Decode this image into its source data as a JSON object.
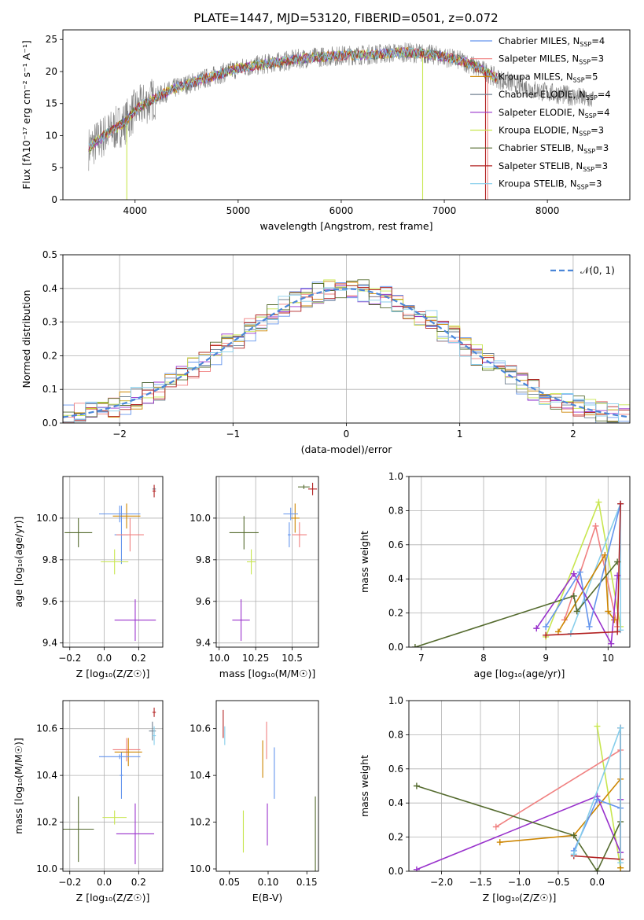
{
  "title": "PLATE=1447, MJD=53120, FIBERID=0501, z=0.072",
  "series_colors": [
    "#6495ed",
    "#f08080",
    "#cd8500",
    "#708090",
    "#9932cc",
    "#c8e650",
    "#556b2f",
    "#b22222",
    "#87ceeb"
  ],
  "chart_data": [
    {
      "type": "line",
      "id": "spectrum",
      "xlabel": "wavelength [Angstrom, rest frame]",
      "ylabel": "Flux [fλ10⁻¹⁷ erg cm⁻² s⁻¹ A⁻¹]",
      "xlim": [
        3300,
        8800
      ],
      "ylim": [
        0,
        26.5
      ],
      "xticks": [
        4000,
        5000,
        6000,
        7000,
        8000
      ],
      "yticks": [
        0,
        5,
        10,
        15,
        20,
        25
      ],
      "legend_position": "upper-right",
      "grid": false,
      "continuum_x": [
        3550,
        3700,
        3900,
        4000,
        4200,
        4400,
        4600,
        4800,
        5000,
        5200,
        5400,
        5600,
        5800,
        6000,
        6200,
        6400,
        6600,
        6800,
        7000,
        7200,
        7400,
        7500,
        7700,
        7900,
        8100,
        8300,
        8450
      ],
      "continuum_y": [
        8,
        10,
        12,
        14,
        16,
        17.5,
        18.5,
        19.5,
        20.5,
        21,
        21.5,
        22,
        22.3,
        22.5,
        22.6,
        22.8,
        23,
        22.8,
        22.3,
        21.5,
        20,
        19,
        18,
        17,
        16.5,
        16,
        15.5
      ],
      "series": [
        {
          "name": "Chabrier MILES, N",
          "sub": "SSP",
          "suffix": "=4"
        },
        {
          "name": "Salpeter MILES, N",
          "sub": "SSP",
          "suffix": "=3"
        },
        {
          "name": "Kroupa MILES, N",
          "sub": "SSP",
          "suffix": "=5"
        },
        {
          "name": "Chabrier ELODIE, N",
          "sub": "SSP",
          "suffix": "=4"
        },
        {
          "name": "Salpeter ELODIE, N",
          "sub": "SSP",
          "suffix": "=4"
        },
        {
          "name": "Kroupa ELODIE, N",
          "sub": "SSP",
          "suffix": "=3"
        },
        {
          "name": "Chabrier STELIB, N",
          "sub": "SSP",
          "suffix": "=3"
        },
        {
          "name": "Salpeter STELIB, N",
          "sub": "SSP",
          "suffix": "=3"
        },
        {
          "name": "Kroupa STELIB, N",
          "sub": "SSP",
          "suffix": "=3"
        }
      ]
    },
    {
      "type": "histogram",
      "id": "residuals",
      "xlabel": "(data-model)/error",
      "ylabel": "Normed distribution",
      "xlim": [
        -2.5,
        2.5
      ],
      "ylim": [
        0,
        0.5
      ],
      "xticks": [
        -2,
        -1,
        0,
        1,
        2
      ],
      "yticks": [
        0.0,
        0.1,
        0.2,
        0.3,
        0.4,
        0.5
      ],
      "grid": true,
      "legend_position": "upper-right",
      "reference_curve": "𝒩(0, 1)"
    },
    {
      "type": "scatter",
      "id": "age-vs-Z",
      "xlabel": "Z [log₁₀(Z/Z☉)]",
      "ylabel": "age  [log₁₀(age/yr)]",
      "xlim": [
        -0.24,
        0.34
      ],
      "ylim": [
        9.38,
        10.2
      ],
      "xticks": [
        -0.2,
        0.0,
        0.2
      ],
      "yticks": [
        9.4,
        9.6,
        9.8,
        10.0
      ],
      "grid": true,
      "points": [
        {
          "x": 0.1,
          "y": 9.92,
          "xerr": 0.04,
          "yerr": 0.14,
          "c": 0
        },
        {
          "x": 0.15,
          "y": 9.92,
          "xerr": 0.08,
          "yerr": 0.08,
          "c": 1
        },
        {
          "x": 0.13,
          "y": 10.01,
          "xerr": 0.08,
          "yerr": 0.06,
          "c": 2
        },
        {
          "x": 0.29,
          "y": 10.14,
          "xerr": 0.01,
          "yerr": 0.01,
          "c": 3
        },
        {
          "x": 0.18,
          "y": 9.51,
          "xerr": 0.12,
          "yerr": 0.1,
          "c": 4
        },
        {
          "x": 0.06,
          "y": 9.79,
          "xerr": 0.08,
          "yerr": 0.06,
          "c": 5
        },
        {
          "x": -0.15,
          "y": 9.93,
          "xerr": 0.08,
          "yerr": 0.07,
          "c": 6
        },
        {
          "x": 0.29,
          "y": 10.13,
          "xerr": 0.01,
          "yerr": 0.03,
          "c": 7
        },
        {
          "x": 0.09,
          "y": 10.02,
          "xerr": 0.12,
          "yerr": 0.04,
          "c": 0
        }
      ]
    },
    {
      "type": "scatter",
      "id": "age-vs-mass",
      "xlabel": "mass [log₁₀(M/M☉)]",
      "ylabel": "",
      "xlim": [
        9.98,
        10.68
      ],
      "ylim": [
        9.38,
        10.2
      ],
      "xticks": [
        10.0,
        10.25,
        10.5
      ],
      "yticks": [
        9.4,
        9.6,
        9.8,
        10.0
      ],
      "grid": true,
      "points": [
        {
          "x": 10.48,
          "y": 9.92,
          "xerr": 0.01,
          "yerr": 0.06,
          "c": 0
        },
        {
          "x": 10.52,
          "y": 10.0,
          "xerr": 0.03,
          "yerr": 0.07,
          "c": 2
        },
        {
          "x": 10.55,
          "y": 9.92,
          "xerr": 0.05,
          "yerr": 0.06,
          "c": 1
        },
        {
          "x": 10.64,
          "y": 10.14,
          "xerr": 0.03,
          "yerr": 0.03,
          "c": 7
        },
        {
          "x": 10.58,
          "y": 10.15,
          "xerr": 0.04,
          "yerr": 0.01,
          "c": 6
        },
        {
          "x": 10.15,
          "y": 9.51,
          "xerr": 0.06,
          "yerr": 0.1,
          "c": 4
        },
        {
          "x": 10.22,
          "y": 9.79,
          "xerr": 0.03,
          "yerr": 0.06,
          "c": 5
        },
        {
          "x": 10.17,
          "y": 9.93,
          "xerr": 0.1,
          "yerr": 0.08,
          "c": 6
        },
        {
          "x": 10.49,
          "y": 10.02,
          "xerr": 0.05,
          "yerr": 0.03,
          "c": 0
        }
      ]
    },
    {
      "type": "line",
      "id": "weight-vs-age",
      "xlabel": "age  [log₁₀(age/yr)]",
      "ylabel": "mass weight",
      "xlim": [
        6.8,
        10.35
      ],
      "ylim": [
        0,
        1.0
      ],
      "xticks": [
        7,
        8,
        9,
        10
      ],
      "yticks": [
        0.0,
        0.2,
        0.4,
        0.6,
        0.8,
        1.0
      ],
      "grid": true,
      "series": [
        {
          "c": 5,
          "points": [
            [
              9.0,
              0.06
            ],
            [
              9.85,
              0.85
            ],
            [
              10.2,
              0.12
            ]
          ]
        },
        {
          "c": 1,
          "points": [
            [
              9.3,
              0.16
            ],
            [
              9.8,
              0.71
            ],
            [
              10.15,
              0.12
            ]
          ]
        },
        {
          "c": 8,
          "points": [
            [
              9.4,
              0.08
            ],
            [
              10.2,
              0.84
            ],
            [
              10.2,
              0.1
            ]
          ]
        },
        {
          "c": 2,
          "points": [
            [
              9.2,
              0.09
            ],
            [
              9.95,
              0.54
            ],
            [
              10.0,
              0.21
            ],
            [
              10.1,
              0.16
            ]
          ]
        },
        {
          "c": 4,
          "points": [
            [
              8.85,
              0.11
            ],
            [
              9.45,
              0.43
            ],
            [
              10.05,
              0.02
            ],
            [
              10.15,
              0.42
            ]
          ]
        },
        {
          "c": 6,
          "points": [
            [
              6.9,
              0.0
            ],
            [
              9.45,
              0.3
            ],
            [
              9.5,
              0.21
            ],
            [
              10.15,
              0.5
            ]
          ]
        },
        {
          "c": 0,
          "points": [
            [
              9.0,
              0.12
            ],
            [
              9.55,
              0.44
            ],
            [
              9.7,
              0.12
            ],
            [
              10.2,
              0.84
            ]
          ]
        },
        {
          "c": 7,
          "points": [
            [
              9.0,
              0.07
            ],
            [
              10.15,
              0.09
            ],
            [
              10.2,
              0.84
            ]
          ]
        }
      ]
    },
    {
      "type": "scatter",
      "id": "mass-vs-Z",
      "xlabel": "Z [log₁₀(Z/Z☉)]",
      "ylabel": "mass [log₁₀(M/M☉)]",
      "xlim": [
        -0.24,
        0.34
      ],
      "ylim": [
        9.99,
        10.72
      ],
      "xticks": [
        -0.2,
        0.0,
        0.2
      ],
      "yticks": [
        10.0,
        10.2,
        10.4,
        10.6
      ],
      "grid": true,
      "points": [
        {
          "x": 0.1,
          "y": 10.4,
          "xerr": 0.01,
          "yerr": 0.1,
          "c": 0
        },
        {
          "x": 0.13,
          "y": 10.51,
          "xerr": 0.08,
          "yerr": 0.05,
          "c": 1
        },
        {
          "x": 0.14,
          "y": 10.5,
          "xerr": 0.08,
          "yerr": 0.06,
          "c": 2
        },
        {
          "x": 0.29,
          "y": 10.67,
          "xerr": 0.01,
          "yerr": 0.02,
          "c": 7
        },
        {
          "x": 0.28,
          "y": 10.59,
          "xerr": 0.02,
          "yerr": 0.04,
          "c": 3
        },
        {
          "x": 0.18,
          "y": 10.15,
          "xerr": 0.11,
          "yerr": 0.13,
          "c": 4
        },
        {
          "x": 0.06,
          "y": 10.22,
          "xerr": 0.07,
          "yerr": 0.03,
          "c": 5
        },
        {
          "x": -0.15,
          "y": 10.17,
          "xerr": 0.09,
          "yerr": 0.14,
          "c": 6
        },
        {
          "x": 0.09,
          "y": 10.48,
          "xerr": 0.12,
          "yerr": 0.01,
          "c": 0
        },
        {
          "x": 0.29,
          "y": 10.57,
          "xerr": 0.01,
          "yerr": 0.04,
          "c": 8
        }
      ]
    },
    {
      "type": "scatter",
      "id": "mass-vs-EBV",
      "xlabel": "E(B-V)",
      "ylabel": "",
      "xlim": [
        0.033,
        0.165
      ],
      "ylim": [
        9.99,
        10.72
      ],
      "xticks": [
        0.05,
        0.1,
        0.15
      ],
      "yticks": [
        10.0,
        10.2,
        10.4,
        10.6
      ],
      "grid": false,
      "points": [
        {
          "x": 0.042,
          "y": 10.62,
          "xerr": 0,
          "yerr": 0.06,
          "c": 7
        },
        {
          "x": 0.044,
          "y": 10.57,
          "xerr": 0,
          "yerr": 0.04,
          "c": 8
        },
        {
          "x": 0.068,
          "y": 10.16,
          "xerr": 0,
          "yerr": 0.09,
          "c": 5
        },
        {
          "x": 0.093,
          "y": 10.47,
          "xerr": 0,
          "yerr": 0.08,
          "c": 2
        },
        {
          "x": 0.098,
          "y": 10.55,
          "xerr": 0,
          "yerr": 0.08,
          "c": 1
        },
        {
          "x": 0.099,
          "y": 10.19,
          "xerr": 0,
          "yerr": 0.09,
          "c": 4
        },
        {
          "x": 0.108,
          "y": 10.41,
          "xerr": 0,
          "yerr": 0.11,
          "c": 0
        },
        {
          "x": 0.161,
          "y": 10.15,
          "xerr": 0,
          "yerr": 0.16,
          "c": 6
        }
      ]
    },
    {
      "type": "line",
      "id": "weight-vs-Z",
      "xlabel": "Z [log₁₀(Z/Z☉)]",
      "ylabel": "mass weight",
      "xlim": [
        -2.42,
        0.42
      ],
      "ylim": [
        0,
        1.0
      ],
      "xticks": [
        -2.0,
        -1.5,
        -1.0,
        -0.5,
        0.0
      ],
      "yticks": [
        0.0,
        0.2,
        0.4,
        0.6,
        0.8,
        1.0
      ],
      "grid": true,
      "series": [
        {
          "c": 5,
          "points": [
            [
              0.0,
              0.85
            ],
            [
              0.3,
              0.02
            ]
          ]
        },
        {
          "c": 1,
          "points": [
            [
              -1.3,
              0.26
            ],
            [
              0.3,
              0.71
            ]
          ]
        },
        {
          "c": 2,
          "points": [
            [
              -1.25,
              0.17
            ],
            [
              -0.3,
              0.21
            ],
            [
              0.3,
              0.54
            ],
            [
              0.3,
              0.02
            ]
          ]
        },
        {
          "c": 4,
          "points": [
            [
              -2.32,
              0.01
            ],
            [
              0.0,
              0.44
            ],
            [
              0.3,
              0.11
            ],
            [
              0.3,
              0.42
            ]
          ]
        },
        {
          "c": 6,
          "points": [
            [
              -2.32,
              0.5
            ],
            [
              -0.3,
              0.21
            ],
            [
              0.0,
              0.0
            ],
            [
              0.3,
              0.29
            ]
          ]
        },
        {
          "c": 0,
          "points": [
            [
              -0.3,
              0.12
            ],
            [
              0.0,
              0.42
            ],
            [
              0.3,
              0.37
            ],
            [
              0.3,
              0.84
            ]
          ]
        },
        {
          "c": 7,
          "points": [
            [
              -0.3,
              0.09
            ],
            [
              0.3,
              0.07
            ],
            [
              0.3,
              0.84
            ]
          ]
        },
        {
          "c": 8,
          "points": [
            [
              -0.3,
              0.1
            ],
            [
              0.3,
              0.84
            ],
            [
              0.3,
              0.05
            ]
          ]
        }
      ]
    }
  ]
}
